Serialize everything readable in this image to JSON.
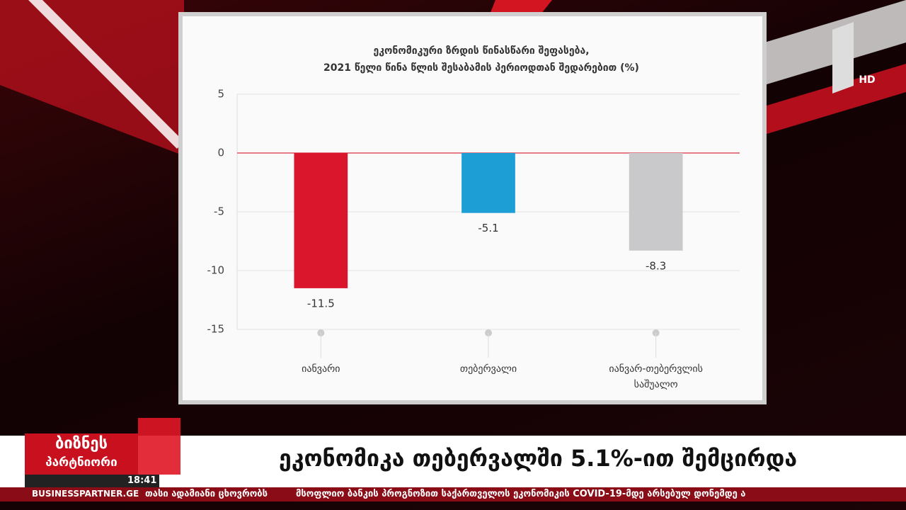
{
  "chart_data": {
    "type": "bar",
    "title": [
      "ეკონომიკური ზრდის წინასწარი შეფასება,",
      "2021 წელი წინა წლის შესაბამის პერიოდთან შედარებით (%)"
    ],
    "categories": [
      "იანვარი",
      "თებერვალი",
      "იანვარ-თებერვლის საშუალო"
    ],
    "values": [
      -11.5,
      -5.1,
      -8.3
    ],
    "colors": [
      "#d9162c",
      "#1d9fd6",
      "#c9c9cb"
    ],
    "ylim": [
      -15,
      5
    ],
    "yticks": [
      5,
      0,
      -5,
      -10,
      -15
    ],
    "grid": true
  },
  "channel": {
    "badge": "HD"
  },
  "lower_third": {
    "logo": [
      "ბიზნეს",
      "პარტნიორი"
    ],
    "time": "18:41",
    "site": "BUSINESSPARTNER.GE",
    "headline": "ეკონომიკა თებერვალში 5.1%-ით შემცირდა",
    "ticker": [
      "თასი ადამიანი ცხოვრობს",
      "მსოფლიო ბანკის პროგნოზით საქართველოს ეკონომიკის COVID-19-მდე არსებულ დონემდე ა"
    ]
  }
}
